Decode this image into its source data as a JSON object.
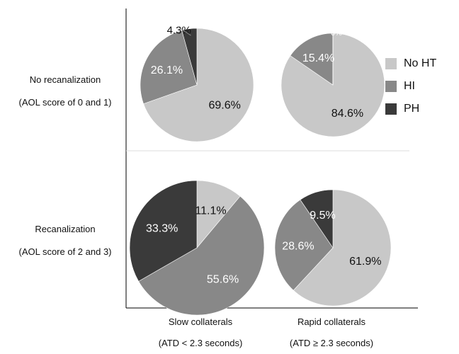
{
  "chart_data": {
    "type": "pie",
    "title": "",
    "legend_position": "right",
    "legend": [
      {
        "name": "No HT",
        "color": "#c8c8c8"
      },
      {
        "name": "HI",
        "color": "#888888"
      },
      {
        "name": "PH",
        "color": "#3a3a3a"
      }
    ],
    "row_labels": [
      {
        "line1": "No recanalization",
        "line2": "(AOL score of 0 and 1)"
      },
      {
        "line1": "Recanalization",
        "line2": "(AOL score of 2 and 3)"
      }
    ],
    "col_labels": [
      {
        "line1": "Slow collaterals",
        "line2": "(ATD < 2.3 seconds)"
      },
      {
        "line1": "Rapid collaterals",
        "line2": "(ATD ≥ 2.3 seconds)"
      }
    ],
    "pies": [
      {
        "row": 0,
        "col": 0,
        "values": [
          69.6,
          26.1,
          4.3
        ],
        "labels": [
          "69.6%",
          "26.1%",
          "4.3%"
        ]
      },
      {
        "row": 0,
        "col": 1,
        "values": [
          84.6,
          15.4,
          0
        ],
        "labels": [
          "84.6%",
          "15.4%",
          "0%"
        ]
      },
      {
        "row": 1,
        "col": 0,
        "values": [
          11.1,
          55.6,
          33.3
        ],
        "labels": [
          "11.1%",
          "55.6%",
          "33.3%"
        ]
      },
      {
        "row": 1,
        "col": 1,
        "values": [
          61.9,
          28.6,
          9.5
        ],
        "labels": [
          "61.9%",
          "28.6%",
          "9.5%"
        ]
      }
    ]
  }
}
